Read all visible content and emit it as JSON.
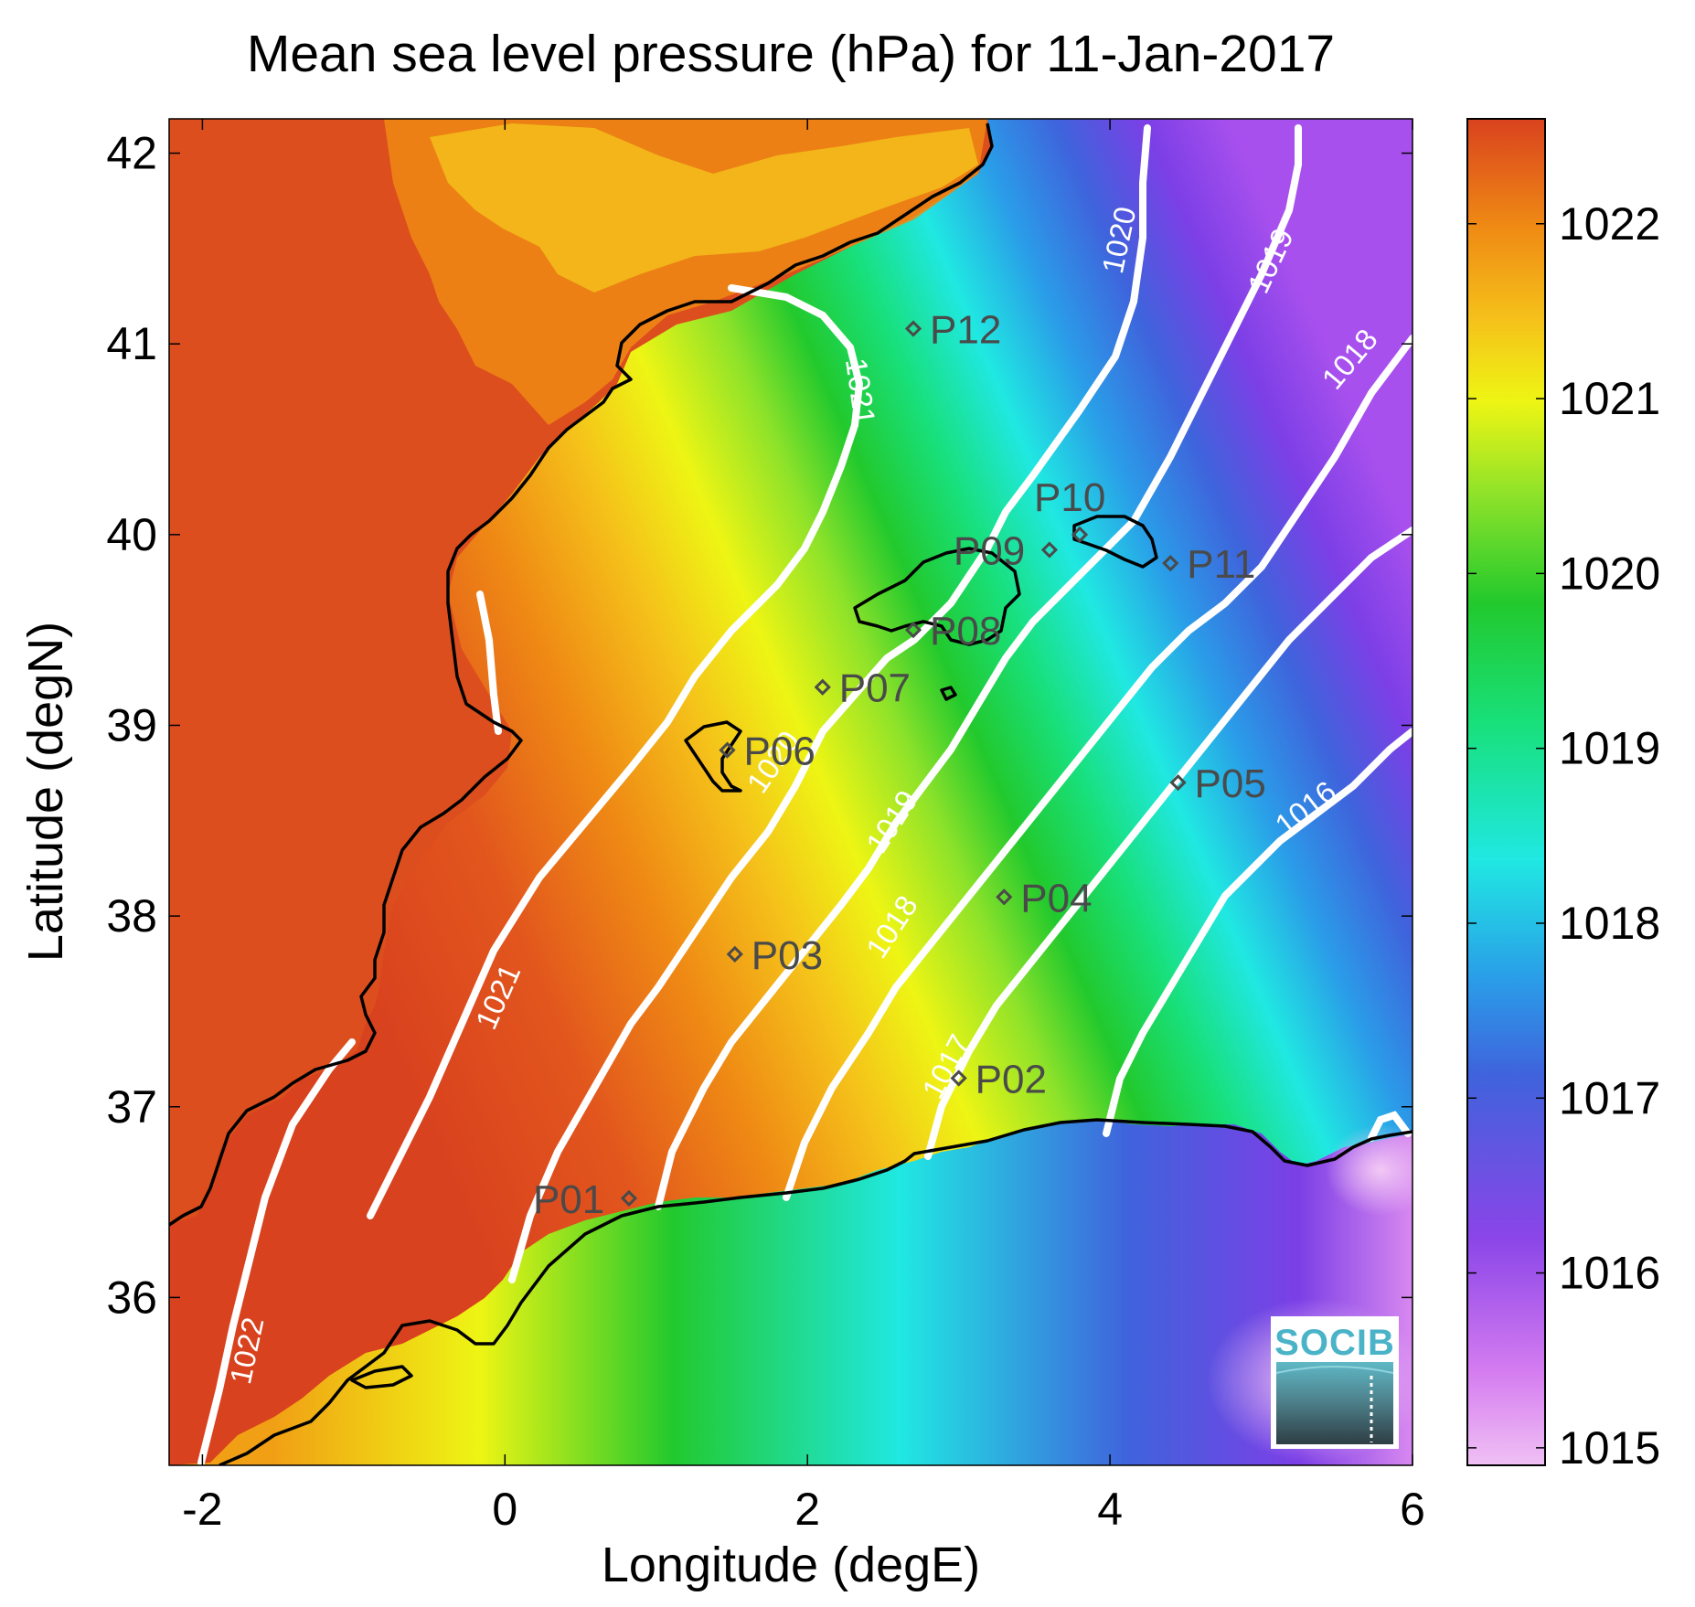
{
  "title": "Mean sea level pressure (hPa) for 11-Jan-2017",
  "xlabel": "Longitude (degE)",
  "ylabel": "Latitude (degN)",
  "x_ticks": [
    "-2",
    "0",
    "2",
    "4",
    "6"
  ],
  "y_ticks": [
    "42",
    "41",
    "40",
    "39",
    "38",
    "37",
    "36"
  ],
  "colorbar": {
    "ticks": [
      "1022",
      "1021",
      "1020",
      "1019",
      "1018",
      "1017",
      "1016",
      "1015"
    ],
    "range": [
      1014.9,
      1022.6
    ]
  },
  "colors": {
    "red": "#d9421e",
    "orange": "#ef8a14",
    "yellow": "#eef514",
    "green": "#22c92d",
    "cyan": "#20e8e2",
    "blue": "#3f63dc",
    "purple": "#7c3fe6",
    "pink": "#f0c0f4",
    "land_pressure_high": "#e0561e"
  },
  "contours": {
    "1022": "1022",
    "1021": "1021",
    "1020": "1020",
    "1019": "1019",
    "1018": "1018",
    "1017": "1017",
    "1016": "1016"
  },
  "points": [
    {
      "id": "P01",
      "label": "P01",
      "lon": 0.82,
      "lat": 36.52
    },
    {
      "id": "P02",
      "label": "P02",
      "lon": 3.0,
      "lat": 37.15
    },
    {
      "id": "P03",
      "label": "P03",
      "lon": 1.52,
      "lat": 37.8
    },
    {
      "id": "P04",
      "label": "P04",
      "lon": 3.3,
      "lat": 38.1
    },
    {
      "id": "P05",
      "label": "P05",
      "lon": 4.45,
      "lat": 38.7
    },
    {
      "id": "P06",
      "label": "P06",
      "lon": 1.47,
      "lat": 38.87
    },
    {
      "id": "P07",
      "label": "P07",
      "lon": 2.1,
      "lat": 39.2
    },
    {
      "id": "P08",
      "label": "P08",
      "lon": 2.7,
      "lat": 39.5
    },
    {
      "id": "P09",
      "label": "P09",
      "lon": 3.6,
      "lat": 39.92
    },
    {
      "id": "P10",
      "label": "P10",
      "lon": 3.8,
      "lat": 40.0
    },
    {
      "id": "P11",
      "label": "P11",
      "lon": 4.4,
      "lat": 39.85
    },
    {
      "id": "P12",
      "label": "P12",
      "lon": 2.7,
      "lat": 41.08
    }
  ],
  "logo": {
    "text": "SOCIB"
  }
}
